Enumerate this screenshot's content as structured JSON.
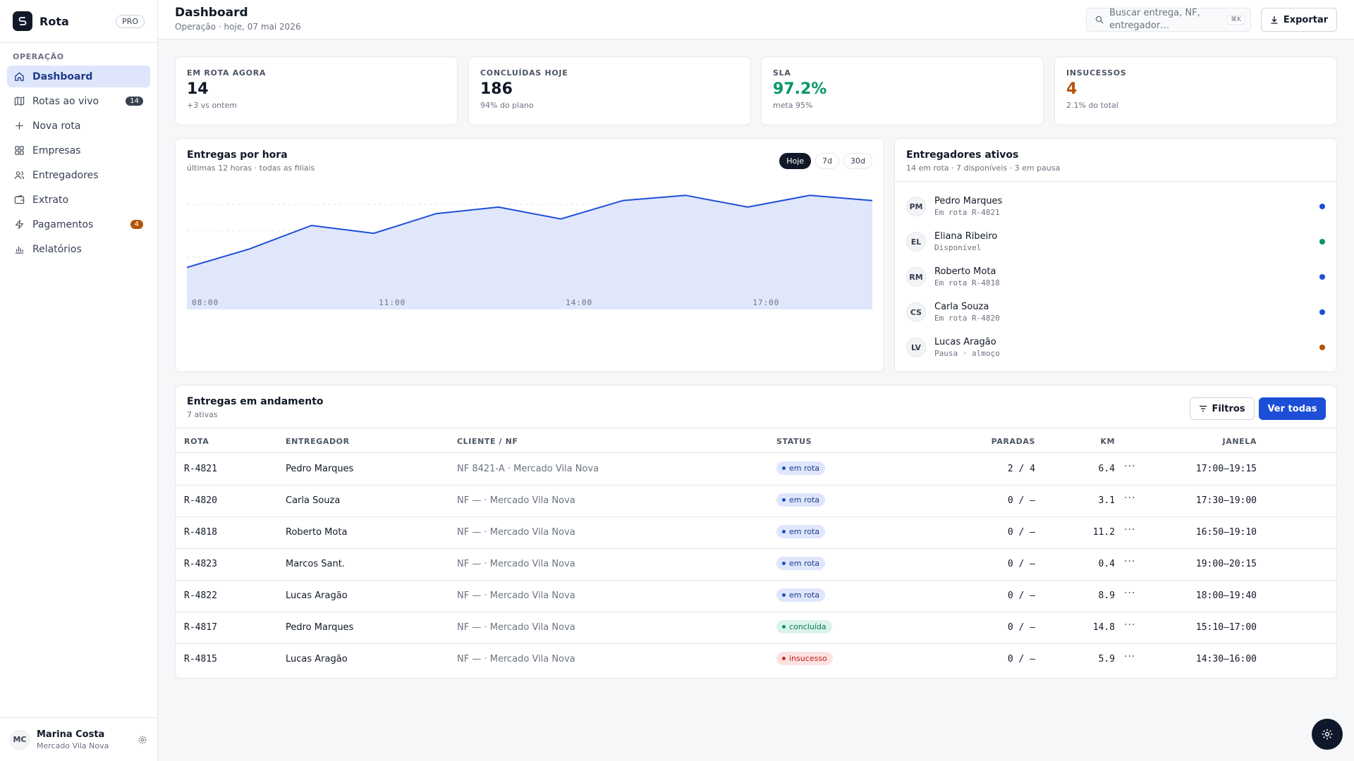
{
  "brand": {
    "name": "Rota",
    "badge": "PRO"
  },
  "sidebar": {
    "section": "OPERAÇÃO",
    "items": [
      {
        "label": "Dashboard",
        "icon": "home-icon",
        "active": true,
        "count": ""
      },
      {
        "label": "Rotas ao vivo",
        "icon": "map-icon",
        "count": "14"
      },
      {
        "label": "Nova rota",
        "icon": "plus-icon",
        "count": ""
      },
      {
        "label": "Empresas",
        "icon": "grid-icon",
        "count": ""
      },
      {
        "label": "Entregadores",
        "icon": "users-icon",
        "count": ""
      },
      {
        "label": "Extrato",
        "icon": "wallet-icon",
        "count": ""
      },
      {
        "label": "Pagamentos",
        "icon": "bolt-icon",
        "count": "4"
      },
      {
        "label": "Relatórios",
        "icon": "bar-chart-icon",
        "count": ""
      }
    ]
  },
  "user": {
    "initials": "MC",
    "name": "Marina Costa",
    "org": "Mercado Vila Nova"
  },
  "header": {
    "title": "Dashboard",
    "subtitle": "Operação · hoje, 07 mai 2026",
    "search_placeholder": "Buscar entrega, NF, entregador…",
    "search_shortcut": "⌘K",
    "export_label": "Exportar"
  },
  "kpis": [
    {
      "label": "EM ROTA AGORA",
      "value": "14",
      "note": "+3 vs ontem",
      "color": "#111827"
    },
    {
      "label": "CONCLUÍDAS HOJE",
      "value": "186",
      "note": "94% do plano",
      "color": "#111827"
    },
    {
      "label": "SLA",
      "value": "97.2%",
      "note": "meta 95%",
      "color": "#059669"
    },
    {
      "label": "INSUCESSOS",
      "value": "4",
      "note": "2.1% do total",
      "color": "#b45309"
    }
  ],
  "chart_card": {
    "title": "Entregas por hora",
    "subtitle": "últimas 12 horas · todas as filiais",
    "ranges": [
      "Hoje",
      "7d",
      "30d"
    ],
    "active_range": "Hoje"
  },
  "chart_data": {
    "type": "area",
    "x": [
      "08:00",
      "09:00",
      "10:00",
      "11:00",
      "12:00",
      "13:00",
      "14:00",
      "15:00",
      "16:00",
      "17:00",
      "18:00",
      "19:00"
    ],
    "values": [
      16,
      23,
      32,
      29,
      36.5,
      39,
      34.5,
      41.5,
      43.5,
      39,
      43.5,
      41.5
    ],
    "tick_labels": [
      "08:00",
      "11:00",
      "14:00",
      "17:00"
    ],
    "ylim": [
      0,
      50
    ],
    "grid": true,
    "color": "#1d4ed8",
    "fill": "#e0e7fb"
  },
  "drivers_card": {
    "title": "Entregadores ativos",
    "subtitle": "14 em rota · 7 disponíveis · 3 em pausa",
    "drivers": [
      {
        "initials": "PM",
        "name": "Pedro Marques",
        "status": "Em rota R-4821",
        "color": "#1d4ed8"
      },
      {
        "initials": "EL",
        "name": "Eliana Ribeiro",
        "status": "Disponível",
        "color": "#059669"
      },
      {
        "initials": "RM",
        "name": "Roberto Mota",
        "status": "Em rota R-4818",
        "color": "#1d4ed8"
      },
      {
        "initials": "CS",
        "name": "Carla Souza",
        "status": "Em rota R-4820",
        "color": "#1d4ed8"
      },
      {
        "initials": "LV",
        "name": "Lucas Aragão",
        "status": "Pausa · almoço",
        "color": "#b45309"
      }
    ]
  },
  "deliveries": {
    "title": "Entregas em andamento",
    "subtitle": "7 ativas",
    "filter_label": "Filtros",
    "view_all_label": "Ver todas",
    "columns": [
      "ROTA",
      "ENTREGADOR",
      "CLIENTE / NF",
      "STATUS",
      "PARADAS",
      "KM",
      "JANELA"
    ],
    "rows": [
      {
        "rota": "R-4821",
        "entregador": "Pedro Marques",
        "cliente": "NF 8421-A · Mercado Vila Nova",
        "status": "em rota",
        "status_kind": "route",
        "paradas": "2 / 4",
        "km": "6.4",
        "janela": "17:00–19:15"
      },
      {
        "rota": "R-4820",
        "entregador": "Carla Souza",
        "cliente": "NF — · Mercado Vila Nova",
        "status": "em rota",
        "status_kind": "route",
        "paradas": "0 / —",
        "km": "3.1",
        "janela": "17:30–19:00"
      },
      {
        "rota": "R-4818",
        "entregador": "Roberto Mota",
        "cliente": "NF — · Mercado Vila Nova",
        "status": "em rota",
        "status_kind": "route",
        "paradas": "0 / —",
        "km": "11.2",
        "janela": "16:50–19:10"
      },
      {
        "rota": "R-4823",
        "entregador": "Marcos Sant.",
        "cliente": "NF — · Mercado Vila Nova",
        "status": "em rota",
        "status_kind": "route",
        "paradas": "0 / —",
        "km": "0.4",
        "janela": "19:00–20:15"
      },
      {
        "rota": "R-4822",
        "entregador": "Lucas Aragão",
        "cliente": "NF — · Mercado Vila Nova",
        "status": "em rota",
        "status_kind": "route",
        "paradas": "0 / —",
        "km": "8.9",
        "janela": "18:00–19:40"
      },
      {
        "rota": "R-4817",
        "entregador": "Pedro Marques",
        "cliente": "NF — · Mercado Vila Nova",
        "status": "concluída",
        "status_kind": "done",
        "paradas": "0 / —",
        "km": "14.8",
        "janela": "15:10–17:00"
      },
      {
        "rota": "R-4815",
        "entregador": "Lucas Aragão",
        "cliente": "NF — · Mercado Vila Nova",
        "status": "insucesso",
        "status_kind": "fail",
        "paradas": "0 / —",
        "km": "5.9",
        "janela": "14:30–16:00"
      }
    ]
  },
  "status_colors": {
    "route": {
      "bg": "#dfe6fb",
      "fg": "#1e3a8a",
      "dot": "#1d4ed8"
    },
    "done": {
      "bg": "#dcf3e8",
      "fg": "#047857",
      "dot": "#059669"
    },
    "fail": {
      "bg": "#fde2e2",
      "fg": "#b91c1c",
      "dot": "#dc2626"
    }
  },
  "settings_fab_icon": "gear-icon"
}
